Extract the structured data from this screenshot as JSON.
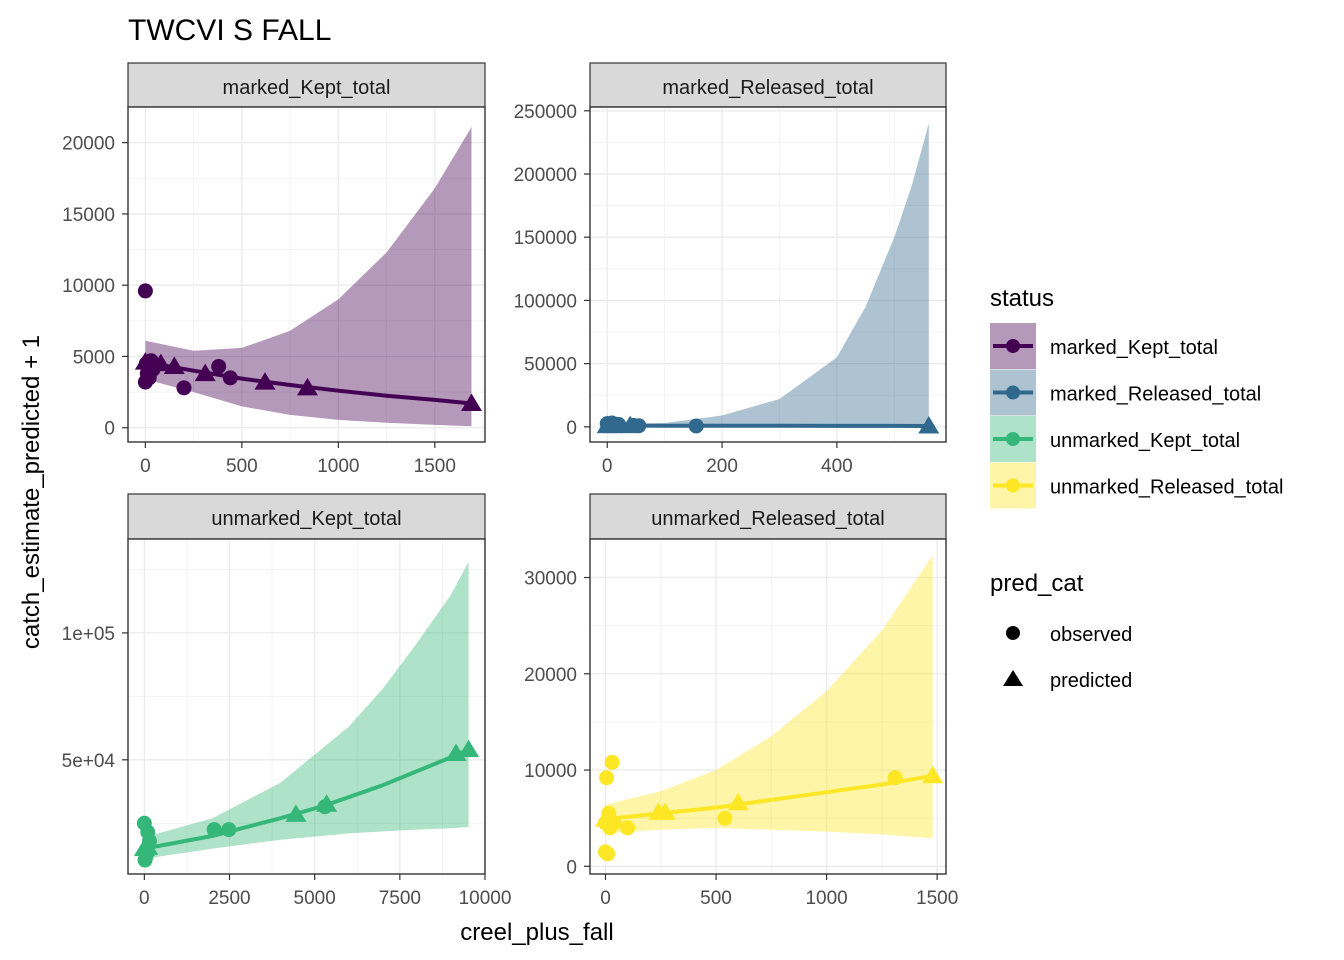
{
  "title": "TWCVI S FALL",
  "x_axis_label": "creel_plus_fall",
  "y_axis_label": "catch_estimate_predicted + 1",
  "legend": {
    "status_title": "status",
    "status_items": [
      {
        "label": "marked_Kept_total",
        "color": "#440154"
      },
      {
        "label": "marked_Released_total",
        "color": "#31688E"
      },
      {
        "label": "unmarked_Kept_total",
        "color": "#35B779"
      },
      {
        "label": "unmarked_Released_total",
        "color": "#FDE725"
      }
    ],
    "shape_title": "pred_cat",
    "shape_items": [
      {
        "label": "observed",
        "shape": "circle"
      },
      {
        "label": "predicted",
        "shape": "triangle"
      }
    ]
  },
  "chart_data": [
    {
      "type": "scatter",
      "panel": "marked_Kept_total",
      "color": "#440154",
      "xlim": [
        -90,
        1760
      ],
      "ylim": [
        -1000,
        22500
      ],
      "x_ticks": [
        0,
        500,
        1000,
        1500
      ],
      "y_ticks": [
        0,
        5000,
        10000,
        15000,
        20000
      ],
      "y_tick_labels": [
        "0",
        "5000",
        "10000",
        "15000",
        "20000"
      ],
      "fit_line": {
        "x": [
          0,
          250,
          500,
          750,
          1000,
          1250,
          1500,
          1690
        ],
        "y": [
          4600,
          4000,
          3450,
          3000,
          2600,
          2250,
          1950,
          1700
        ]
      },
      "ribbon": {
        "x": [
          0,
          250,
          500,
          750,
          1000,
          1250,
          1500,
          1690
        ],
        "lower": [
          3400,
          2500,
          1500,
          900,
          550,
          350,
          200,
          100
        ],
        "upper": [
          6100,
          5400,
          5600,
          6800,
          9000,
          12300,
          16800,
          21100
        ]
      },
      "observed": {
        "x": [
          0,
          0,
          5,
          10,
          20,
          30,
          40,
          200,
          380,
          440
        ],
        "y": [
          9600,
          3200,
          4500,
          3800,
          3500,
          4700,
          4100,
          2800,
          4300,
          3500
        ]
      },
      "predicted": {
        "x": [
          0,
          80,
          150,
          310,
          620,
          840,
          1690
        ],
        "y": [
          4600,
          4500,
          4300,
          3800,
          3200,
          2800,
          1700
        ]
      }
    },
    {
      "type": "scatter",
      "panel": "marked_Released_total",
      "color": "#31688E",
      "xlim": [
        -30,
        590
      ],
      "ylim": [
        -12000,
        253000
      ],
      "x_ticks": [
        0,
        200,
        400
      ],
      "y_ticks": [
        0,
        50000,
        100000,
        150000,
        200000,
        250000
      ],
      "y_tick_labels": [
        "0",
        "50000",
        "100000",
        "150000",
        "200000",
        "250000"
      ],
      "fit_line": {
        "x": [
          0,
          100,
          200,
          300,
          400,
          500,
          560
        ],
        "y": [
          1000,
          900,
          850,
          800,
          750,
          700,
          650
        ]
      },
      "ribbon": {
        "x": [
          0,
          100,
          200,
          300,
          400,
          450,
          500,
          530,
          560
        ],
        "lower": [
          400,
          200,
          100,
          50,
          0,
          0,
          0,
          0,
          0
        ],
        "upper": [
          2000,
          3000,
          9000,
          22000,
          55000,
          95000,
          150000,
          190000,
          240000
        ]
      },
      "observed": {
        "x": [
          0,
          2,
          5,
          8,
          15,
          20,
          45,
          55,
          155
        ],
        "y": [
          2500,
          1500,
          1000,
          3000,
          2000,
          1800,
          1200,
          900,
          700
        ]
      },
      "predicted": {
        "x": [
          0,
          10,
          40,
          560
        ],
        "y": [
          1000,
          1000,
          950,
          650
        ]
      }
    },
    {
      "type": "scatter",
      "panel": "unmarked_Kept_total",
      "color": "#35B779",
      "xlim": [
        -480,
        10000
      ],
      "ylim": [
        5000,
        137000
      ],
      "x_ticks": [
        0,
        2500,
        5000,
        7500,
        10000
      ],
      "y_ticks": [
        50000,
        100000
      ],
      "y_tick_labels": [
        "5e+04",
        "1e+05"
      ],
      "fit_line": {
        "x": [
          0,
          2000,
          4000,
          5300,
          7000,
          9000,
          9520
        ],
        "y": [
          15000,
          20000,
          27000,
          32000,
          40000,
          51000,
          54000
        ]
      },
      "ribbon": {
        "x": [
          0,
          2000,
          4000,
          6000,
          7000,
          8000,
          9000,
          9520
        ],
        "lower": [
          11000,
          15000,
          18500,
          21000,
          21800,
          22500,
          23000,
          23500
        ],
        "upper": [
          19500,
          27000,
          41000,
          63000,
          78000,
          96000,
          115000,
          128000
        ]
      },
      "observed": {
        "x": [
          0,
          20,
          50,
          100,
          150,
          2050,
          2480,
          5300
        ],
        "y": [
          25000,
          10500,
          12000,
          21500,
          18000,
          22500,
          22500,
          31500
        ]
      },
      "predicted": {
        "x": [
          0,
          100,
          4450,
          5350,
          9150,
          9520
        ],
        "y": [
          15000,
          15500,
          28500,
          32500,
          52500,
          54000
        ]
      }
    },
    {
      "type": "scatter",
      "panel": "unmarked_Released_total",
      "color": "#FDE725",
      "xlim": [
        -70,
        1540
      ],
      "ylim": [
        -800,
        34000
      ],
      "x_ticks": [
        0,
        500,
        1000,
        1500
      ],
      "y_ticks": [
        0,
        10000,
        20000,
        30000
      ],
      "y_tick_labels": [
        "0",
        "10000",
        "20000",
        "30000"
      ],
      "fit_line": {
        "x": [
          0,
          250,
          500,
          750,
          1000,
          1250,
          1480
        ],
        "y": [
          4900,
          5500,
          6100,
          6900,
          7700,
          8500,
          9400
        ]
      },
      "ribbon": {
        "x": [
          0,
          250,
          500,
          750,
          1000,
          1250,
          1480
        ],
        "lower": [
          3400,
          3800,
          4000,
          3800,
          3600,
          3300,
          2900
        ],
        "upper": [
          6400,
          7800,
          10000,
          13500,
          18200,
          24500,
          32300
        ]
      },
      "observed": {
        "x": [
          0,
          0,
          5,
          10,
          15,
          20,
          30,
          40,
          100,
          540,
          1310
        ],
        "y": [
          1500,
          4500,
          9200,
          1300,
          5500,
          4000,
          10800,
          4500,
          4000,
          5000,
          9200
        ]
      },
      "predicted": {
        "x": [
          0,
          240,
          270,
          600,
          1480
        ],
        "y": [
          4900,
          5600,
          5600,
          6600,
          9400
        ]
      }
    }
  ]
}
